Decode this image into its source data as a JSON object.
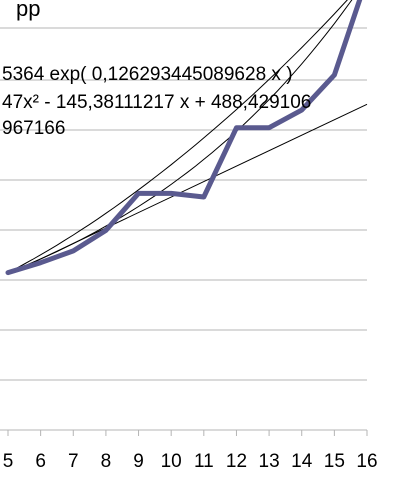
{
  "chart_data": {
    "type": "line",
    "title_fragment": "pp",
    "x_tick_labels": [
      "5",
      "6",
      "7",
      "8",
      "9",
      "10",
      "11",
      "12",
      "13",
      "14",
      "15",
      "16"
    ],
    "xlim": [
      5,
      16
    ],
    "ylim": [
      0,
      6
    ],
    "grid": true,
    "series": [
      {
        "x": [
          5,
          6,
          7,
          8,
          9,
          10,
          11,
          12,
          13,
          14,
          15,
          16
        ],
        "values": [
          1.83,
          2.0,
          2.2,
          2.55,
          3.18,
          3.18,
          3.12,
          4.3,
          4.3,
          4.6,
          5.2,
          6.85
        ]
      }
    ],
    "trendlines": [
      {
        "kind": "linear",
        "values": [
          1.8,
          4.7
        ]
      },
      {
        "kind": "exponential",
        "values": [
          1.83,
          6.85
        ]
      },
      {
        "kind": "polynomial",
        "values": [
          1.83,
          6.85
        ]
      }
    ],
    "annotations": [
      "5364 exp( 0,126293445089628 x )",
      "47x² - 145,38111217 x + 488,429106",
      "967166"
    ],
    "colors": {
      "series": "#5a5a8f",
      "trend": "#000000",
      "grid": "#b4b4b4"
    }
  }
}
